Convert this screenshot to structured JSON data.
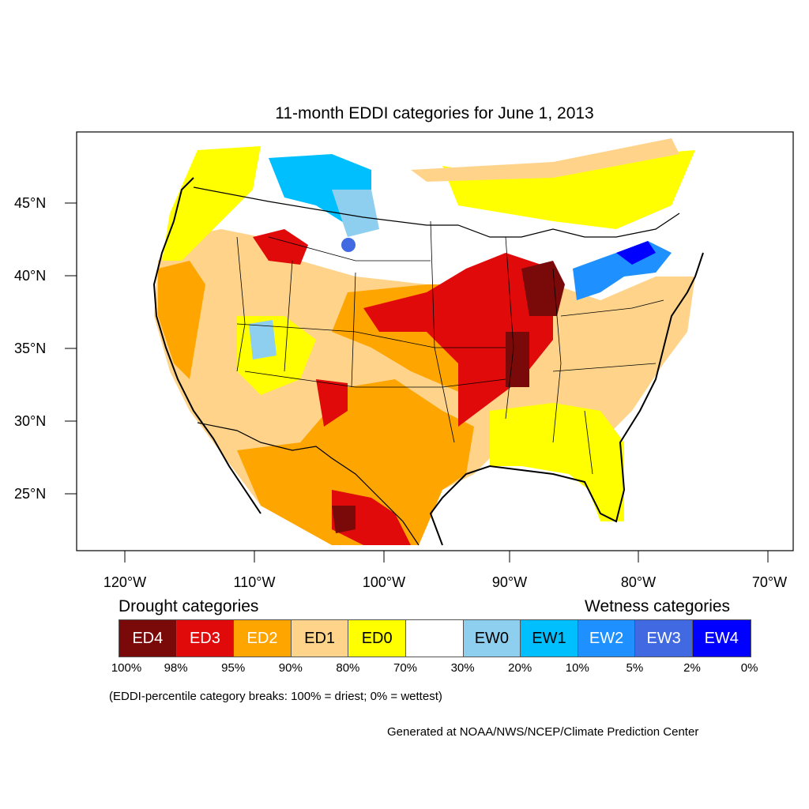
{
  "title": "11-month EDDI categories for June 1, 2013",
  "y_axis_labels": [
    "45°N",
    "40°N",
    "35°N",
    "30°N",
    "25°N"
  ],
  "x_axis_labels": [
    "120°W",
    "110°W",
    "100°W",
    "90°W",
    "80°W",
    "70°W"
  ],
  "legend": {
    "drought_header": "Drought categories",
    "wetness_header": "Wetness categories",
    "categories": [
      {
        "label": "ED4",
        "color": "#7a0a0a",
        "text_color": "#ffffff"
      },
      {
        "label": "ED3",
        "color": "#e00a0a",
        "text_color": "#ffffff"
      },
      {
        "label": "ED2",
        "color": "#ffa500",
        "text_color": "#ffffff"
      },
      {
        "label": "ED1",
        "color": "#ffd48a",
        "text_color": "#000000"
      },
      {
        "label": "ED0",
        "color": "#ffff00",
        "text_color": "#000000"
      },
      {
        "label": "",
        "color": "#ffffff",
        "text_color": "#000000"
      },
      {
        "label": "EW0",
        "color": "#8ecff0",
        "text_color": "#000000"
      },
      {
        "label": "EW1",
        "color": "#00bfff",
        "text_color": "#000000"
      },
      {
        "label": "EW2",
        "color": "#1e90ff",
        "text_color": "#ffffff"
      },
      {
        "label": "EW3",
        "color": "#4169e1",
        "text_color": "#ffffff"
      },
      {
        "label": "EW4",
        "color": "#0000ff",
        "text_color": "#ffffff"
      }
    ],
    "percentiles": [
      "100%",
      "98%",
      "95%",
      "90%",
      "80%",
      "70%",
      "30%",
      "20%",
      "10%",
      "5%",
      "2%",
      "0%"
    ]
  },
  "note": "(EDDI-percentile category breaks: 100% = driest; 0% = wettest)",
  "credit": "Generated at NOAA/NWS/NCEP/Climate Prediction Center"
}
